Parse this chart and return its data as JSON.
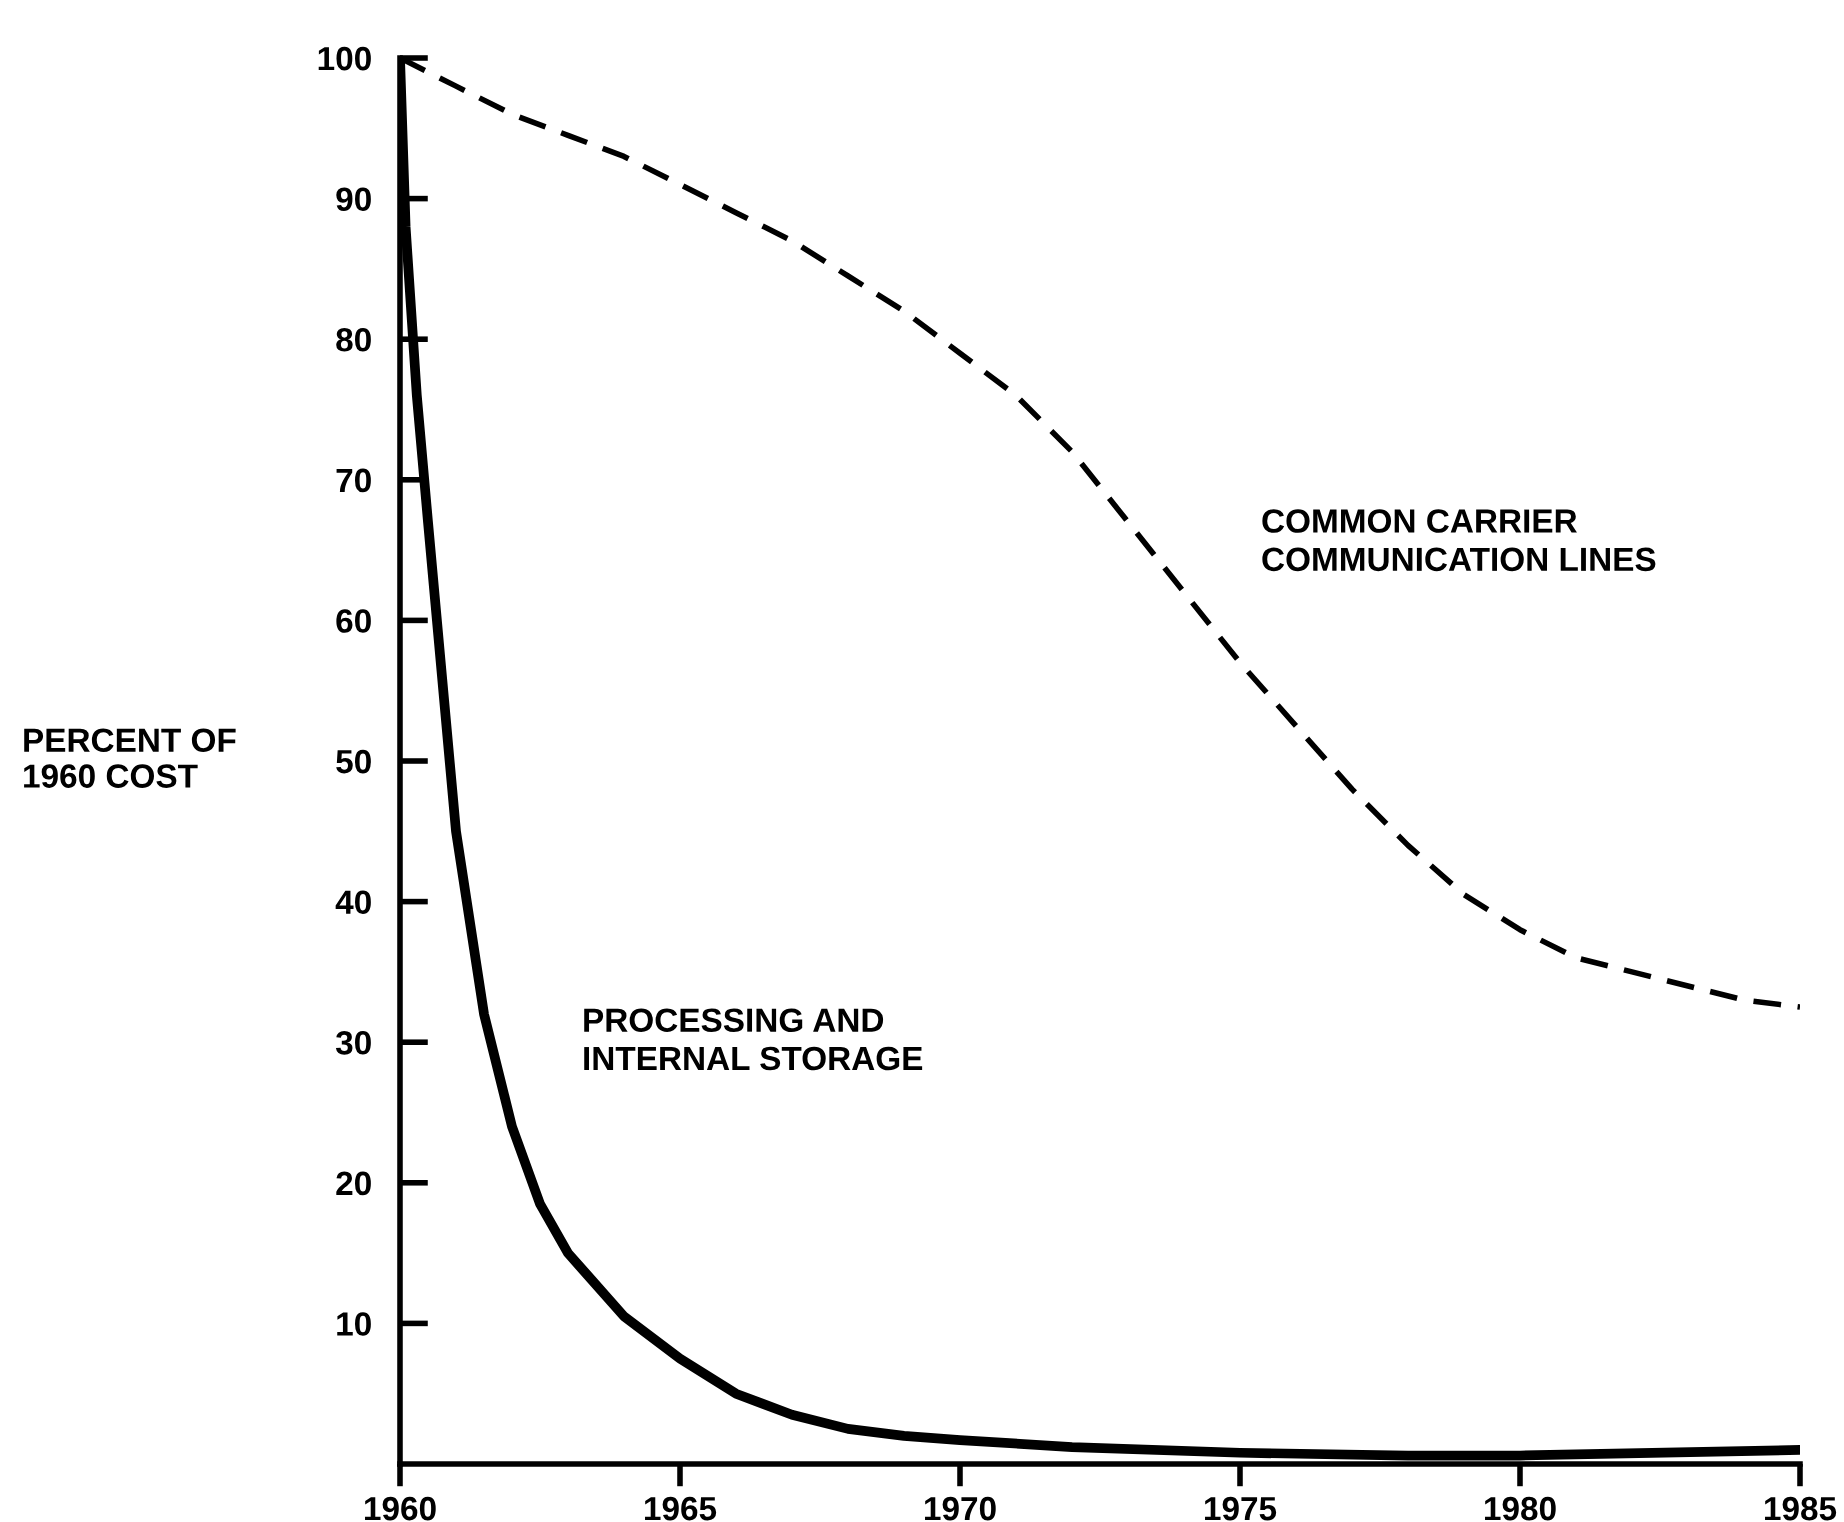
{
  "chart_data": {
    "type": "line",
    "ylabel": "PERCENT OF\n1960 COST",
    "x": [
      1960,
      1961,
      1962,
      1963,
      1964,
      1965,
      1966,
      1967,
      1968,
      1969,
      1970,
      1971,
      1972,
      1973,
      1974,
      1975,
      1976,
      1977,
      1978,
      1979,
      1980,
      1981,
      1982,
      1983,
      1984,
      1985
    ],
    "series": [
      {
        "name": "COMMON CARRIER\nCOMMUNICATION LINES",
        "color": "#000000",
        "line_style": "dashed",
        "values": [
          100,
          98,
          96,
          94.5,
          93,
          91,
          89,
          87,
          84.5,
          82,
          79,
          76,
          72,
          67,
          62,
          57,
          52.5,
          48,
          44,
          40.5,
          38,
          36,
          35,
          34,
          33,
          32.5
        ]
      },
      {
        "name": "PROCESSING AND\nINTERNAL STORAGE",
        "color": "#000000",
        "line_style": "solid",
        "x": [
          1960,
          1960.1,
          1960.3,
          1960.5,
          1960.75,
          1961,
          1961.5,
          1962,
          1962.5,
          1963,
          1964,
          1965,
          1966,
          1967,
          1968,
          1969,
          1970,
          1972,
          1975,
          1978,
          1980,
          1985
        ],
        "values": [
          100,
          88,
          76,
          67,
          56,
          45,
          32,
          24,
          18.5,
          15,
          10.5,
          7.5,
          5,
          3.5,
          2.5,
          2,
          1.7,
          1.2,
          0.8,
          0.6,
          0.6,
          1
        ]
      }
    ],
    "xlim": [
      1960,
      1985
    ],
    "xticks": [
      1960,
      1965,
      1970,
      1975,
      1980,
      1985
    ],
    "ylim": [
      0,
      100
    ],
    "yticks": [
      10,
      20,
      30,
      40,
      50,
      60,
      70,
      80,
      90,
      100
    ],
    "grid": false,
    "legend": false
  }
}
